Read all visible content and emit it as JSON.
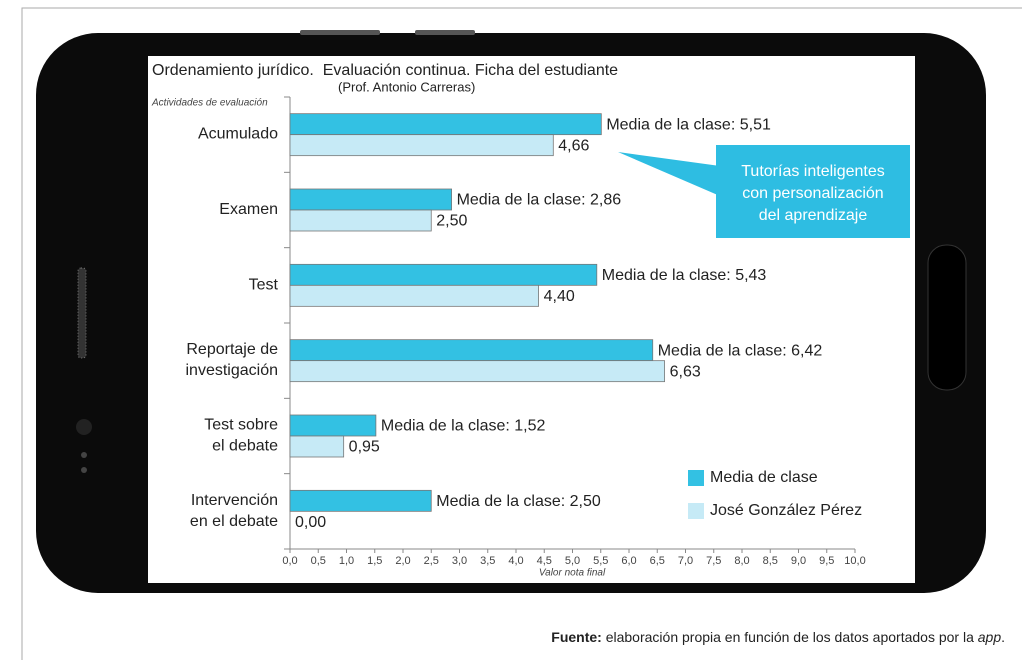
{
  "chart_data": {
    "type": "bar",
    "orientation": "horizontal",
    "title": "Ordenamiento jurídico.  Evaluación continua. Ficha del estudiante",
    "subtitle": "(Prof. Antonio Carreras)",
    "y_label": "Actividades de evaluación",
    "x_label": "Valor nota final",
    "categories": [
      "Acumulado",
      "Examen",
      "Test",
      "Reportaje de\ninvestigación",
      "Test sobre\nel debate",
      "Intervención\nen el debate"
    ],
    "series": [
      {
        "name": "Media de clase",
        "color": "#33c1e3",
        "values": [
          5.51,
          2.86,
          5.43,
          6.42,
          1.52,
          2.5
        ],
        "value_labels": [
          "Media de la clase: 5,51",
          "Media de la clase: 2,86",
          "Media de la clase: 5,43",
          "Media de la clase: 6,42",
          "Media de la clase: 1,52",
          "Media de la clase: 2,50"
        ]
      },
      {
        "name": "José González Pérez",
        "color": "#c6eaf6",
        "values": [
          4.66,
          2.5,
          4.4,
          6.63,
          0.95,
          0.0
        ],
        "value_labels": [
          "4,66",
          "2,50",
          "4,40",
          "6,63",
          "0,95",
          "0,00"
        ]
      }
    ],
    "xlim": [
      0,
      10
    ],
    "xticks": [
      {
        "value": 0,
        "label": "0,0"
      },
      {
        "value": 0.5,
        "label": "0,5"
      },
      {
        "value": 1,
        "label": "1,0"
      },
      {
        "value": 1.5,
        "label": "1,5"
      },
      {
        "value": 2,
        "label": "2,0"
      },
      {
        "value": 2.5,
        "label": "2,5"
      },
      {
        "value": 3,
        "label": "3,0"
      },
      {
        "value": 3.5,
        "label": "3,5"
      },
      {
        "value": 4,
        "label": "4,0"
      },
      {
        "value": 4.5,
        "label": "4,5"
      },
      {
        "value": 5,
        "label": "5,0"
      },
      {
        "value": 5.5,
        "label": "5,5"
      },
      {
        "value": 6,
        "label": "6,0"
      },
      {
        "value": 6.5,
        "label": "6,5"
      },
      {
        "value": 7,
        "label": "7,0"
      },
      {
        "value": 7.5,
        "label": "7,5"
      },
      {
        "value": 8,
        "label": "8,0"
      },
      {
        "value": 8.5,
        "label": "8,5"
      },
      {
        "value": 9,
        "label": "9,0"
      },
      {
        "value": 9.5,
        "label": "9,5"
      },
      {
        "value": 10,
        "label": "10,0"
      }
    ],
    "legend": "lower right",
    "annotation": {
      "lines": [
        "Tutorías inteligentes",
        "con personalización",
        "del aprendizaje"
      ],
      "color": "#2ebde2"
    }
  },
  "source": {
    "label": "Fuente:",
    "text": " elaboración propia en función de los datos aportados por la ",
    "app": "app",
    "end": "."
  }
}
